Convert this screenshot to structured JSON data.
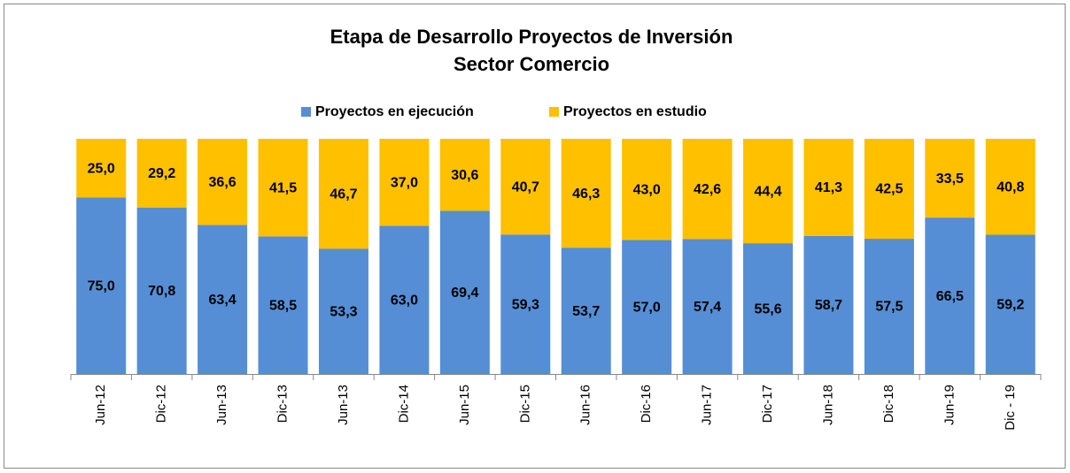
{
  "chart_data": {
    "type": "stacked_bar",
    "title": "Etapa de Desarrollo Proyectos de Inversión",
    "subtitle": "Sector Comercio",
    "categories": [
      "Jun-12",
      "Dic-12",
      "Jun-13",
      "Dic-13",
      "Jun-13",
      "Dic-14",
      "Jun-15",
      "Dic-15",
      "Jun-16",
      "Dic-16",
      "Jun-17",
      "Dic-17",
      "Jun-18",
      "Dic-18",
      "Jun-19",
      "Dic - 19"
    ],
    "series": [
      {
        "name": "Proyectos en ejecución",
        "color": "#558ed5",
        "values": [
          75.0,
          70.8,
          63.4,
          58.5,
          53.3,
          63.0,
          69.4,
          59.3,
          53.7,
          57.0,
          57.4,
          55.6,
          58.7,
          57.5,
          66.5,
          59.2
        ],
        "value_labels": [
          "75,0",
          "70,8",
          "63,4",
          "58,5",
          "53,3",
          "63,0",
          "69,4",
          "59,3",
          "53,7",
          "57,0",
          "57,4",
          "55,6",
          "58,7",
          "57,5",
          "66,5",
          "59,2"
        ]
      },
      {
        "name": "Proyectos en estudio",
        "color": "#ffc000",
        "values": [
          25.0,
          29.2,
          36.6,
          41.5,
          46.7,
          37.0,
          30.6,
          40.7,
          46.3,
          43.0,
          42.6,
          44.4,
          41.3,
          42.5,
          33.5,
          40.8
        ],
        "value_labels": [
          "25,0",
          "29,2",
          "36,6",
          "41,5",
          "46,7",
          "37,0",
          "30,6",
          "40,7",
          "46,3",
          "43,0",
          "42,6",
          "44,4",
          "41,3",
          "42,5",
          "33,5",
          "40,8"
        ]
      }
    ],
    "ylim": [
      0,
      100
    ],
    "legend": "top"
  }
}
